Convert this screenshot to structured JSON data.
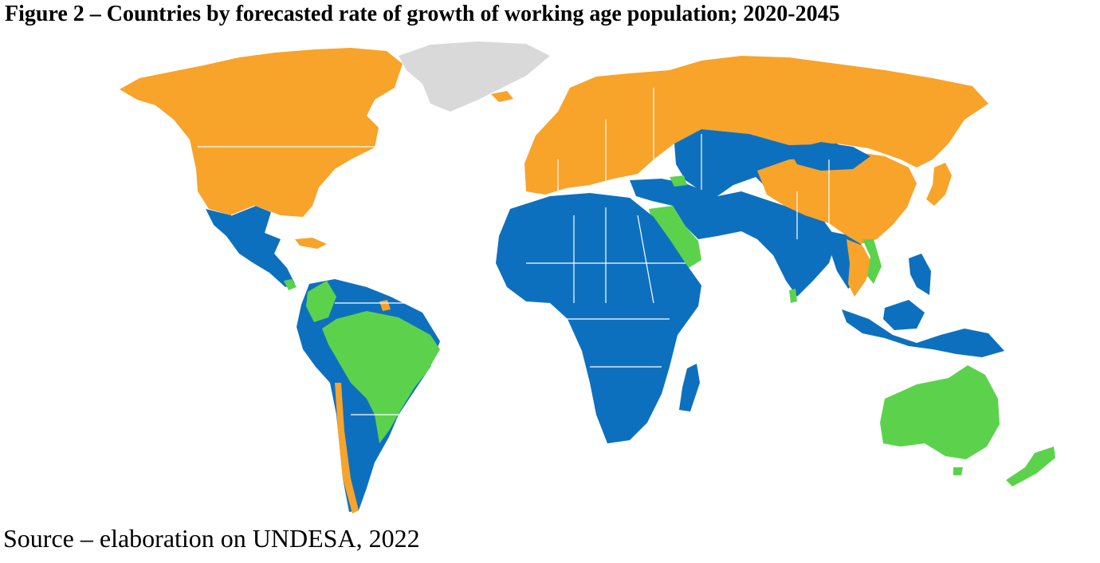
{
  "figure": {
    "title": "Figure 2 – Countries by forecasted rate of growth of working age population; 2020-2045",
    "source": "Source – elaboration on UNDESA, 2022"
  },
  "colors": {
    "category_orange": "#f8a32a",
    "category_blue": "#0d70bf",
    "category_green": "#5cd24c",
    "no_data": "#d9d9d9"
  }
}
